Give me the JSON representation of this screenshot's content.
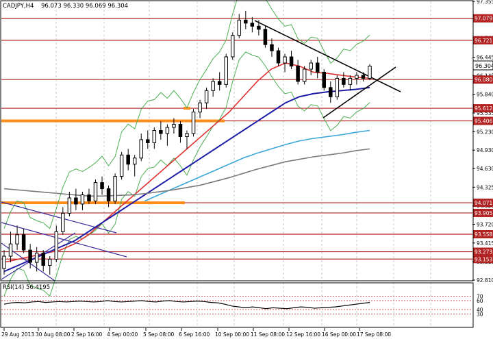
{
  "chart_data": {
    "type": "candlestick",
    "symbol_label": "CADJPY,H4",
    "ohlc_label": "96.073 96.330 96.069 96.304",
    "last_price_label": "96.304",
    "price_ticks": [
      "97.355",
      "97.075",
      "96.760",
      "96.445",
      "96.145",
      "95.840",
      "95.535",
      "95.230",
      "94.930",
      "94.630",
      "94.325",
      "94.020",
      "93.720",
      "93.415",
      "93.110",
      "92.810"
    ],
    "price_ylim": [
      92.81,
      97.355
    ],
    "horizontal_levels": [
      {
        "label": "97.079",
        "value": 97.079,
        "color": "#b22222"
      },
      {
        "label": "96.721",
        "value": 96.721,
        "color": "#b22222"
      },
      {
        "label": "96.080",
        "value": 96.08,
        "color": "#b22222"
      },
      {
        "label": "95.612",
        "value": 95.612,
        "color": "#b22222"
      },
      {
        "label": "95.406",
        "value": 95.406,
        "color": "#b22222"
      },
      {
        "label": "94.071",
        "value": 94.071,
        "color": "#b22222"
      },
      {
        "label": "93.905",
        "value": 93.905,
        "color": "#b22222"
      },
      {
        "label": "93.558",
        "value": 93.558,
        "color": "#b22222"
      },
      {
        "label": "93.273",
        "value": 93.273,
        "color": "#b22222"
      },
      {
        "label": "93.153",
        "value": 93.153,
        "color": "#b22222"
      }
    ],
    "time_labels": [
      "29 Aug 2013",
      "30 Aug 08:00",
      "2 Sep 16:00",
      "4 Sep 00:00",
      "5 Sep 08:00",
      "6 Sep 16:00",
      "10 Sep 00:00",
      "11 Sep 08:00",
      "12 Sep 16:00",
      "16 Sep 00:00",
      "17 Sep 08:00"
    ],
    "candles": [
      [
        93.0,
        93.3,
        92.9,
        93.2
      ],
      [
        93.2,
        93.6,
        93.1,
        93.4
      ],
      [
        93.4,
        93.7,
        93.3,
        93.55
      ],
      [
        93.55,
        93.65,
        93.25,
        93.3
      ],
      [
        93.3,
        93.4,
        93.0,
        93.1
      ],
      [
        93.1,
        93.35,
        92.95,
        93.25
      ],
      [
        93.25,
        93.3,
        92.95,
        93.05
      ],
      [
        93.05,
        93.2,
        92.9,
        93.15
      ],
      [
        93.15,
        93.7,
        93.1,
        93.6
      ],
      [
        93.6,
        94.0,
        93.55,
        93.9
      ],
      [
        93.9,
        94.25,
        93.85,
        94.15
      ],
      [
        94.15,
        94.3,
        93.95,
        94.05
      ],
      [
        94.05,
        94.25,
        93.95,
        94.2
      ],
      [
        94.2,
        94.3,
        94.05,
        94.1
      ],
      [
        94.1,
        94.45,
        94.05,
        94.4
      ],
      [
        94.4,
        94.5,
        94.2,
        94.3
      ],
      [
        94.3,
        94.35,
        94.0,
        94.1
      ],
      [
        94.1,
        94.55,
        94.05,
        94.5
      ],
      [
        94.5,
        94.9,
        94.45,
        94.85
      ],
      [
        94.85,
        94.95,
        94.6,
        94.7
      ],
      [
        94.7,
        94.85,
        94.5,
        94.8
      ],
      [
        94.8,
        95.2,
        94.75,
        95.1
      ],
      [
        95.1,
        95.25,
        94.95,
        95.05
      ],
      [
        95.05,
        95.3,
        94.95,
        95.25
      ],
      [
        95.25,
        95.4,
        95.1,
        95.2
      ],
      [
        95.2,
        95.35,
        95.0,
        95.3
      ],
      [
        95.3,
        95.45,
        95.2,
        95.35
      ],
      [
        95.35,
        95.4,
        95.05,
        95.15
      ],
      [
        95.15,
        95.25,
        94.95,
        95.2
      ],
      [
        95.2,
        95.6,
        95.15,
        95.55
      ],
      [
        95.55,
        95.75,
        95.45,
        95.7
      ],
      [
        95.7,
        95.95,
        95.6,
        95.9
      ],
      [
        95.9,
        96.1,
        95.8,
        96.05
      ],
      [
        96.05,
        96.2,
        95.9,
        96.0
      ],
      [
        96.0,
        96.5,
        95.95,
        96.45
      ],
      [
        96.45,
        96.85,
        96.4,
        96.8
      ],
      [
        96.8,
        97.15,
        96.75,
        97.05
      ],
      [
        97.05,
        97.2,
        96.9,
        97.0
      ],
      [
        97.0,
        97.1,
        96.85,
        96.95
      ],
      [
        96.95,
        97.05,
        96.8,
        96.9
      ],
      [
        96.9,
        96.95,
        96.6,
        96.65
      ],
      [
        96.65,
        96.75,
        96.45,
        96.55
      ],
      [
        96.55,
        96.6,
        96.3,
        96.35
      ],
      [
        96.35,
        96.5,
        96.2,
        96.45
      ],
      [
        96.45,
        96.55,
        96.25,
        96.3
      ],
      [
        96.3,
        96.4,
        96.0,
        96.05
      ],
      [
        96.05,
        96.3,
        96.0,
        96.25
      ],
      [
        96.25,
        96.4,
        96.15,
        96.35
      ],
      [
        96.35,
        96.45,
        96.1,
        96.2
      ],
      [
        96.2,
        96.25,
        95.9,
        95.95
      ],
      [
        95.95,
        96.05,
        95.7,
        95.8
      ],
      [
        95.8,
        96.15,
        95.75,
        96.1
      ],
      [
        96.1,
        96.2,
        95.95,
        96.0
      ],
      [
        96.0,
        96.15,
        95.9,
        96.1
      ],
      [
        96.1,
        96.2,
        96.0,
        96.15
      ],
      [
        96.15,
        96.2,
        96.05,
        96.1
      ],
      [
        96.1,
        96.33,
        96.07,
        96.3
      ]
    ],
    "moving_averages": [
      {
        "color": "#e03030",
        "values": [
          93.1,
          93.15,
          93.2,
          93.25,
          93.3,
          93.4,
          93.55,
          93.75,
          93.95,
          94.15,
          94.35,
          94.55,
          94.75,
          94.95,
          95.15,
          95.35,
          95.55,
          95.8,
          96.05,
          96.25,
          96.35,
          96.3,
          96.2,
          96.18,
          96.15,
          96.12,
          96.1
        ]
      },
      {
        "color": "#1c1ca8",
        "values": [
          92.95,
          93.05,
          93.15,
          93.25,
          93.35,
          93.45,
          93.6,
          93.75,
          93.9,
          94.05,
          94.2,
          94.35,
          94.5,
          94.65,
          94.8,
          94.95,
          95.1,
          95.25,
          95.4,
          95.55,
          95.7,
          95.8,
          95.85,
          95.88,
          95.9,
          95.92,
          95.95
        ]
      },
      {
        "color": "#3aa6d8",
        "values": [
          null,
          null,
          null,
          null,
          null,
          null,
          null,
          null,
          null,
          null,
          94.1,
          94.2,
          94.3,
          94.4,
          94.5,
          94.6,
          94.7,
          94.8,
          94.88,
          94.95,
          95.02,
          95.08,
          95.12,
          95.15,
          95.18,
          95.22,
          95.25
        ]
      },
      {
        "color": "#7a7a7a",
        "values": [
          94.3,
          94.28,
          94.26,
          94.24,
          94.22,
          94.2,
          94.18,
          94.18,
          94.19,
          94.2,
          94.22,
          94.25,
          94.28,
          94.32,
          94.36,
          94.42,
          94.48,
          94.55,
          94.62,
          94.68,
          94.74,
          94.78,
          94.82,
          94.85,
          94.88,
          94.92,
          94.95
        ]
      }
    ],
    "rsi_label": "RSI(14) 56.4195",
    "rsi_ticks": [
      "70",
      "60",
      "40",
      "30"
    ],
    "rsi_values": [
      52,
      55,
      56,
      55,
      57,
      58,
      56,
      57,
      58,
      57,
      58,
      59,
      58,
      57,
      58,
      60,
      58,
      57,
      58,
      59,
      60,
      58,
      57,
      59,
      60,
      58,
      57,
      58,
      59,
      58,
      56,
      55,
      52,
      48,
      46,
      44,
      46,
      44,
      42,
      44,
      43,
      42,
      44,
      46,
      45,
      43,
      44,
      45,
      46,
      48,
      50,
      52,
      54,
      56
    ]
  }
}
